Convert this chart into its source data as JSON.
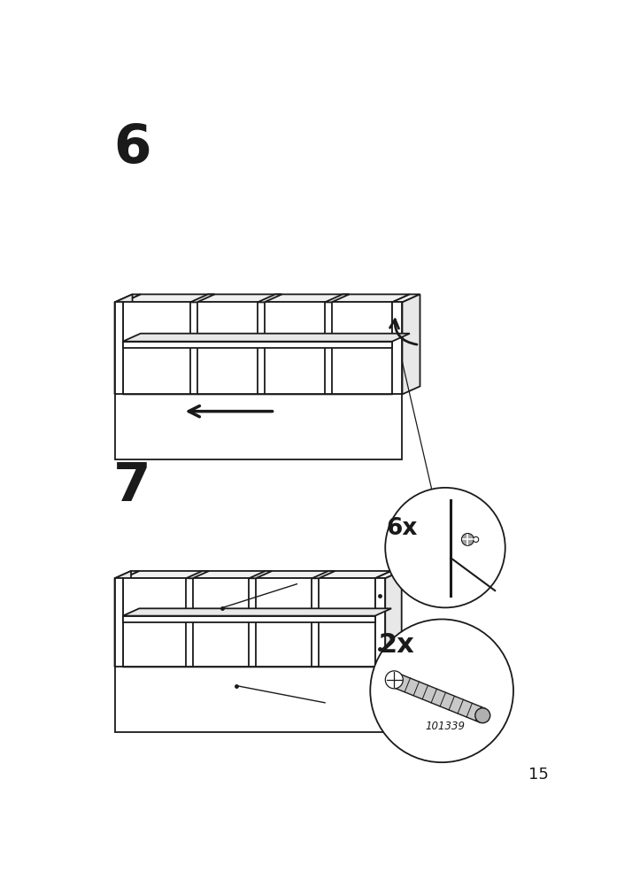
{
  "bg_color": "#ffffff",
  "line_color": "#1a1a1a",
  "step6_label": "6",
  "step7_label": "7",
  "step6_count": "6x",
  "step7_count": "2x",
  "part_number": "101339",
  "page_number": "15",
  "lw": 1.3
}
